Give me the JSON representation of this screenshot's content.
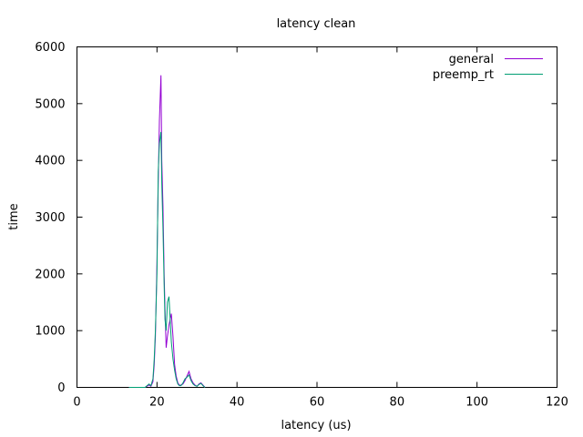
{
  "chart_data": {
    "type": "line",
    "title": "latency clean",
    "xlabel": "latency (us)",
    "ylabel": "time",
    "xlim": [
      0,
      120
    ],
    "ylim": [
      0,
      6000
    ],
    "x_ticks": [
      0,
      20,
      40,
      60,
      80,
      100,
      120
    ],
    "y_ticks": [
      0,
      1000,
      2000,
      3000,
      4000,
      5000,
      6000
    ],
    "grid": false,
    "legend_position": "top-right",
    "series": [
      {
        "name": "general",
        "color": "#9400d3",
        "x": [
          13,
          14,
          15,
          16,
          17,
          18,
          18.5,
          19,
          19.3,
          19.6,
          20,
          20.3,
          20.6,
          21,
          21.2,
          21.5,
          21.8,
          22,
          22.3,
          22.6,
          23,
          23.3,
          23.6,
          24,
          24.4,
          24.8,
          25.2,
          25.6,
          26,
          26.5,
          27,
          27.5,
          28,
          28.5,
          29,
          29.5,
          30,
          30.5,
          31,
          31.5,
          32
        ],
        "y": [
          0,
          0,
          0,
          0,
          0,
          40,
          20,
          100,
          400,
          900,
          2200,
          3600,
          4700,
          5500,
          4000,
          3200,
          2000,
          1400,
          700,
          900,
          1100,
          1200,
          1300,
          900,
          400,
          200,
          80,
          40,
          40,
          60,
          120,
          200,
          280,
          150,
          80,
          40,
          20,
          60,
          80,
          40,
          0
        ]
      },
      {
        "name": "preemp_rt",
        "color": "#009e73",
        "x": [
          13,
          14,
          15,
          16,
          17,
          18,
          18.5,
          19,
          19.3,
          19.6,
          20,
          20.3,
          20.6,
          21,
          21.2,
          21.5,
          21.8,
          22,
          22.3,
          22.6,
          23,
          23.3,
          23.6,
          24,
          24.4,
          24.8,
          25.2,
          25.6,
          26,
          26.5,
          27,
          27.5,
          28,
          28.5,
          29,
          29.5,
          30,
          30.5,
          31,
          31.5,
          32
        ],
        "y": [
          0,
          0,
          0,
          0,
          0,
          60,
          30,
          150,
          500,
          1000,
          2000,
          3800,
          4300,
          4500,
          3600,
          2800,
          1800,
          1200,
          1000,
          1500,
          1600,
          1200,
          800,
          500,
          300,
          150,
          60,
          30,
          30,
          80,
          150,
          180,
          220,
          120,
          60,
          30,
          20,
          50,
          70,
          30,
          0
        ]
      }
    ]
  }
}
